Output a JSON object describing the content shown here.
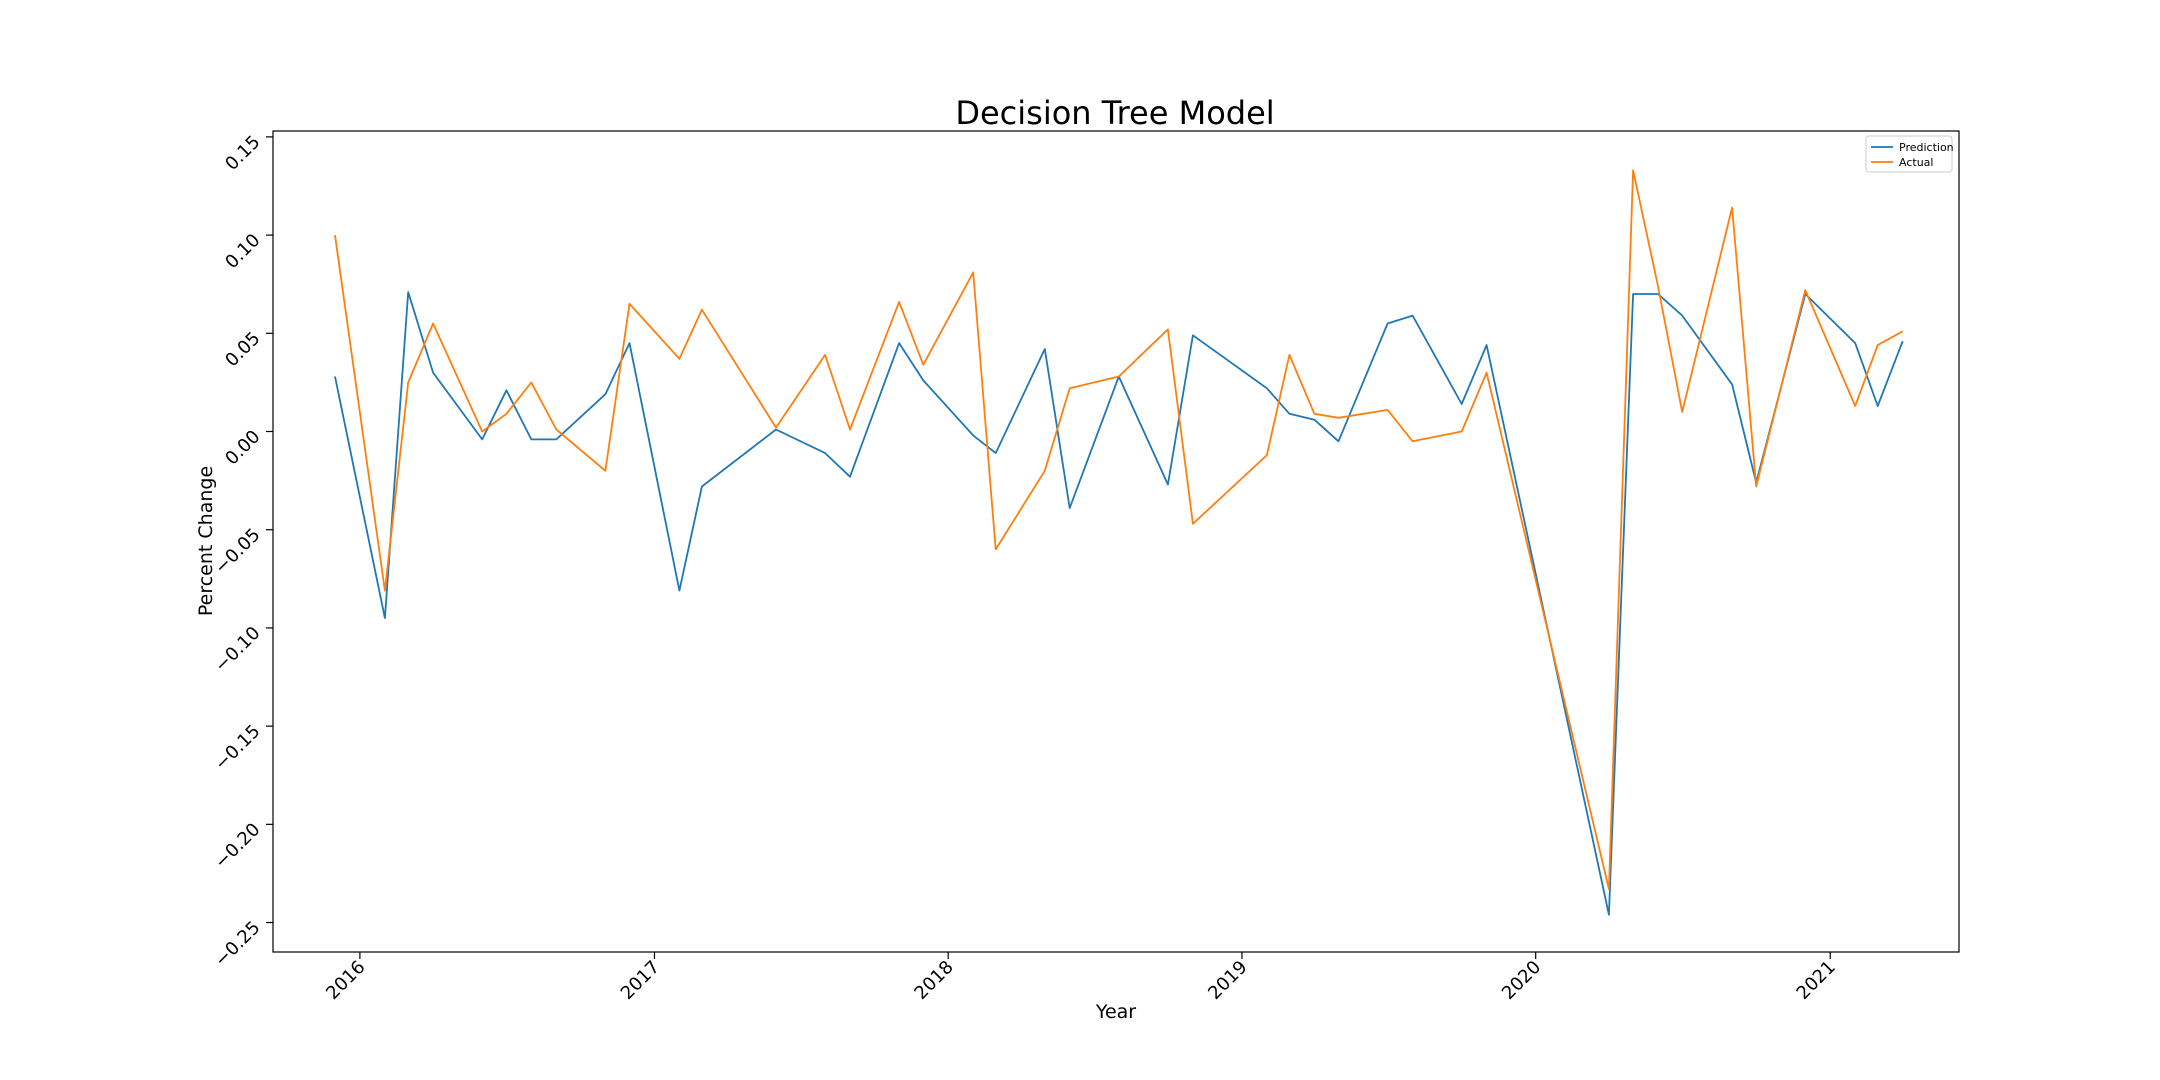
{
  "chart_data": {
    "type": "line",
    "title": "Decision Tree Model",
    "xlabel": "Year",
    "ylabel": "Percent Change",
    "x_tick_labels": [
      "2016",
      "2017",
      "2018",
      "2019",
      "2020",
      "2021"
    ],
    "y_tick_labels": [
      "−0.25",
      "−0.20",
      "−0.15",
      "−0.10",
      "−0.05",
      "0.00",
      "0.05",
      "0.10",
      "0.15"
    ],
    "xlim": [
      "2015-09-15",
      "2021-06-10"
    ],
    "ylim": [
      -0.265,
      0.153
    ],
    "grid": false,
    "legend_position": "top-right",
    "x": [
      "2015-12-01",
      "2016-02-01",
      "2016-03-01",
      "2016-04-01",
      "2016-06-01",
      "2016-07-01",
      "2016-08-01",
      "2016-09-01",
      "2016-11-01",
      "2016-12-01",
      "2017-02-01",
      "2017-03-01",
      "2017-06-01",
      "2017-08-01",
      "2017-09-01",
      "2017-11-01",
      "2017-12-01",
      "2018-02-01",
      "2018-03-01",
      "2018-05-01",
      "2018-06-01",
      "2018-08-01",
      "2018-10-01",
      "2018-11-01",
      "2019-02-01",
      "2019-03-01",
      "2019-04-01",
      "2019-05-01",
      "2019-07-01",
      "2019-08-01",
      "2019-10-01",
      "2019-11-01",
      "2020-04-01",
      "2020-05-01",
      "2020-06-01",
      "2020-07-01",
      "2020-09-01",
      "2020-10-01",
      "2020-12-01",
      "2021-02-01",
      "2021-03-01",
      "2021-04-01"
    ],
    "series": [
      {
        "name": "Prediction",
        "color": "#1f77b4",
        "values": [
          0.028,
          -0.095,
          0.071,
          0.03,
          -0.004,
          0.021,
          -0.004,
          -0.004,
          0.019,
          0.045,
          -0.081,
          -0.028,
          0.001,
          -0.011,
          -0.023,
          0.045,
          0.026,
          -0.002,
          -0.011,
          0.042,
          -0.039,
          0.028,
          -0.027,
          0.049,
          0.022,
          0.009,
          0.006,
          -0.005,
          0.055,
          0.059,
          0.014,
          0.044,
          -0.246,
          0.07,
          0.07,
          0.059,
          0.024,
          -0.026,
          0.07,
          0.045,
          0.013,
          0.046
        ]
      },
      {
        "name": "Actual",
        "color": "#ff7f0e",
        "values": [
          0.1,
          -0.081,
          0.025,
          0.055,
          0.0,
          0.009,
          0.025,
          0.001,
          -0.02,
          0.065,
          0.037,
          0.062,
          0.002,
          0.039,
          0.001,
          0.066,
          0.034,
          0.081,
          -0.06,
          -0.02,
          0.022,
          0.028,
          0.052,
          -0.047,
          -0.012,
          0.039,
          0.009,
          0.007,
          0.011,
          -0.005,
          0.0,
          0.03,
          -0.233,
          0.133,
          0.074,
          0.01,
          0.114,
          -0.028,
          0.072,
          0.013,
          0.044,
          0.051
        ]
      }
    ]
  }
}
